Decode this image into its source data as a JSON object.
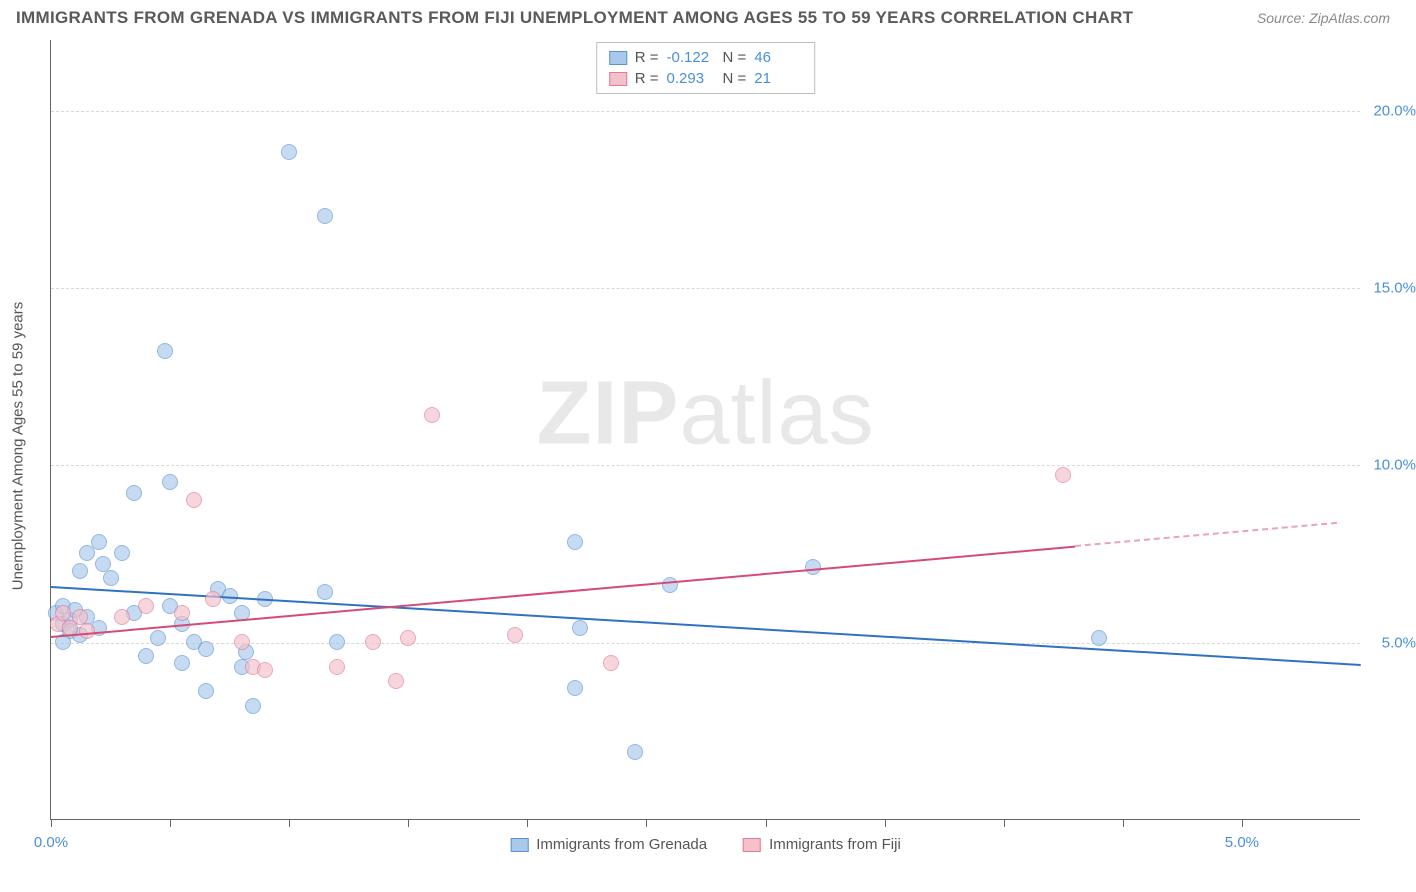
{
  "title": "IMMIGRANTS FROM GRENADA VS IMMIGRANTS FROM FIJI UNEMPLOYMENT AMONG AGES 55 TO 59 YEARS CORRELATION CHART",
  "source": "Source: ZipAtlas.com",
  "watermark_bold": "ZIP",
  "watermark_rest": "atlas",
  "y_axis_title": "Unemployment Among Ages 55 to 59 years",
  "chart": {
    "type": "scatter",
    "background_color": "#ffffff",
    "grid_color": "#d8d8d8",
    "axis_color": "#666666",
    "tick_label_color": "#4a8fd8",
    "xlim": [
      0,
      5.5
    ],
    "ylim": [
      0,
      22
    ],
    "y_gridlines": [
      5,
      10,
      15,
      20
    ],
    "y_tick_labels": [
      "5.0%",
      "10.0%",
      "15.0%",
      "20.0%"
    ],
    "x_ticks": [
      0,
      0.5,
      1.0,
      1.5,
      2.0,
      2.5,
      3.0,
      3.5,
      4.0,
      4.5,
      5.0
    ],
    "x_tick_labels": {
      "0": "0.0%",
      "5": "5.0%"
    },
    "series": [
      {
        "name": "Immigrants from Grenada",
        "fill_color": "#a8c8ec",
        "stroke_color": "#5b93d0",
        "trend_color": "#2f72c2",
        "R": "-0.122",
        "N": "46",
        "trend": {
          "x1": 0.0,
          "y1": 6.6,
          "x2": 5.5,
          "y2": 4.4,
          "dash_from_x": null
        },
        "points": [
          [
            0.02,
            5.8
          ],
          [
            0.05,
            5.5
          ],
          [
            0.05,
            6.0
          ],
          [
            0.08,
            5.6
          ],
          [
            0.08,
            5.3
          ],
          [
            0.1,
            5.9
          ],
          [
            0.12,
            5.2
          ],
          [
            0.12,
            7.0
          ],
          [
            0.15,
            7.5
          ],
          [
            0.15,
            5.7
          ],
          [
            0.2,
            7.8
          ],
          [
            0.2,
            5.4
          ],
          [
            0.22,
            7.2
          ],
          [
            0.25,
            6.8
          ],
          [
            0.3,
            7.5
          ],
          [
            0.35,
            9.2
          ],
          [
            0.4,
            4.6
          ],
          [
            0.45,
            5.1
          ],
          [
            0.5,
            6.0
          ],
          [
            0.5,
            9.5
          ],
          [
            0.55,
            4.4
          ],
          [
            0.55,
            5.5
          ],
          [
            0.6,
            5.0
          ],
          [
            0.65,
            3.6
          ],
          [
            0.65,
            4.8
          ],
          [
            0.7,
            6.5
          ],
          [
            0.75,
            6.3
          ],
          [
            0.8,
            5.8
          ],
          [
            0.8,
            4.3
          ],
          [
            0.82,
            4.7
          ],
          [
            0.85,
            3.2
          ],
          [
            0.9,
            6.2
          ],
          [
            0.48,
            13.2
          ],
          [
            1.0,
            18.8
          ],
          [
            1.15,
            17.0
          ],
          [
            1.15,
            6.4
          ],
          [
            1.2,
            5.0
          ],
          [
            2.2,
            3.7
          ],
          [
            2.2,
            7.8
          ],
          [
            2.22,
            5.4
          ],
          [
            2.45,
            1.9
          ],
          [
            2.6,
            6.6
          ],
          [
            3.2,
            7.1
          ],
          [
            4.4,
            5.1
          ],
          [
            0.35,
            5.8
          ],
          [
            0.05,
            5.0
          ]
        ]
      },
      {
        "name": "Immigrants from Fiji",
        "fill_color": "#f4c0ca",
        "stroke_color": "#e07a95",
        "trend_color": "#d54b74",
        "R": "0.293",
        "N": "21",
        "trend": {
          "x1": 0.0,
          "y1": 5.2,
          "x2": 5.4,
          "y2": 8.4,
          "dash_from_x": 4.3
        },
        "points": [
          [
            0.03,
            5.5
          ],
          [
            0.05,
            5.8
          ],
          [
            0.08,
            5.4
          ],
          [
            0.12,
            5.7
          ],
          [
            0.15,
            5.3
          ],
          [
            0.3,
            5.7
          ],
          [
            0.4,
            6.0
          ],
          [
            0.55,
            5.8
          ],
          [
            0.6,
            9.0
          ],
          [
            0.68,
            6.2
          ],
          [
            0.8,
            5.0
          ],
          [
            0.85,
            4.3
          ],
          [
            0.9,
            4.2
          ],
          [
            1.2,
            4.3
          ],
          [
            1.35,
            5.0
          ],
          [
            1.45,
            3.9
          ],
          [
            1.5,
            5.1
          ],
          [
            1.6,
            11.4
          ],
          [
            1.95,
            5.2
          ],
          [
            2.35,
            4.4
          ],
          [
            4.25,
            9.7
          ]
        ]
      }
    ]
  },
  "legend_top_labels": {
    "R": "R =",
    "N": "N ="
  }
}
